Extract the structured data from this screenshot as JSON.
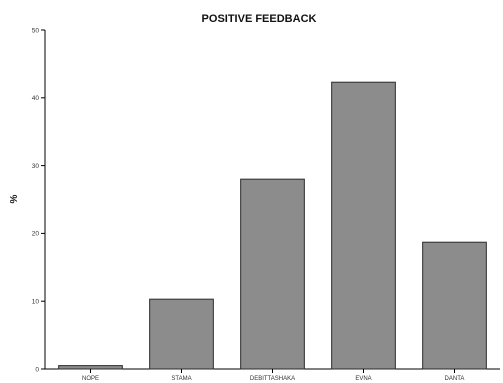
{
  "chart_data": {
    "type": "bar",
    "title": "POSITIVE FEEDBACK",
    "xlabel": "",
    "ylabel": "%",
    "categories": [
      "NOPE",
      "STAMA",
      "DEBITTASHAKA",
      "EVNA",
      "DANTA"
    ],
    "values": [
      0.5,
      10.3,
      28.0,
      42.3,
      18.7
    ],
    "ylim": [
      0,
      50
    ],
    "yticks": [
      0,
      10,
      20,
      30,
      40,
      50
    ],
    "grid": false,
    "legend": "none",
    "bar_color": "#8c8c8c",
    "bar_edge_color": "#2b2b2b",
    "axis_color": "#000000"
  }
}
